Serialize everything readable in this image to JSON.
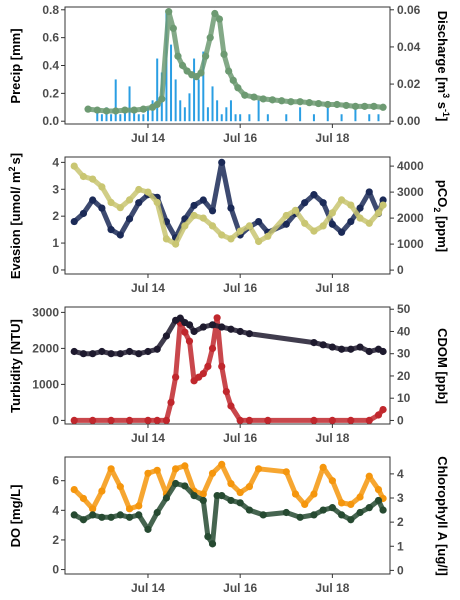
{
  "chart_data": [
    {
      "type": "bar+scatter",
      "left_axis": {
        "label": "Precip [mm]",
        "ylim": [
          -0.02,
          0.82
        ],
        "ticks": [
          "0.0",
          "0.2",
          "0.4",
          "0.6",
          "0.8"
        ]
      },
      "right_axis": {
        "label_main": "Discharge [m",
        "label_sup1": "3",
        "label_mid": " s",
        "label_sup2": "-1",
        "label_end": "]",
        "ylim": [
          -0.0015,
          0.0615
        ],
        "ticks": [
          "0.00",
          "0.02",
          "0.04",
          "0.06"
        ]
      },
      "x_ticks": [
        "Jul 14",
        "Jul 16",
        "Jul 18"
      ],
      "series": [
        {
          "name": "Precip",
          "color": "#2a9ee3",
          "axis": "left",
          "kind": "bars",
          "x": [
            12.9,
            13.0,
            13.1,
            13.2,
            13.3,
            13.4,
            13.5,
            13.6,
            13.7,
            13.8,
            13.9,
            14.0,
            14.1,
            14.2,
            14.3,
            14.4,
            14.5,
            14.6,
            14.7,
            14.8,
            14.9,
            15.0,
            15.1,
            15.2,
            15.3,
            15.4,
            15.5,
            15.6,
            15.7,
            15.8,
            15.9,
            16.0,
            16.2,
            16.4,
            16.6,
            17.0,
            17.3,
            17.6,
            17.9,
            18.2,
            18.5,
            18.8,
            19.0
          ],
          "values": [
            0.1,
            0.05,
            0.1,
            0.05,
            0.3,
            0.05,
            0.1,
            0.25,
            0.1,
            0.05,
            0.05,
            0.1,
            0.15,
            0.45,
            0.35,
            0.8,
            0.55,
            0.3,
            0.15,
            0.1,
            0.2,
            0.45,
            0.3,
            0.5,
            0.1,
            0.25,
            0.15,
            0.05,
            0.1,
            0.15,
            0.05,
            0.05,
            0.05,
            0.15,
            0.05,
            0.05,
            0.1,
            0.05,
            0.1,
            0.05,
            0.1,
            0.05,
            0.05
          ]
        },
        {
          "name": "Discharge",
          "color": "#6d9a72",
          "axis": "right",
          "kind": "points",
          "x": [
            12.7,
            12.9,
            13.1,
            13.3,
            13.5,
            13.7,
            13.9,
            14.1,
            14.2,
            14.3,
            14.45,
            14.55,
            14.65,
            14.75,
            14.85,
            14.95,
            15.05,
            15.15,
            15.25,
            15.35,
            15.45,
            15.55,
            15.65,
            15.75,
            15.85,
            15.95,
            16.1,
            16.3,
            16.5,
            16.7,
            16.9,
            17.1,
            17.3,
            17.5,
            17.7,
            17.9,
            18.1,
            18.3,
            18.5,
            18.7,
            18.9,
            19.1
          ],
          "values": [
            0.0065,
            0.006,
            0.0055,
            0.0055,
            0.006,
            0.006,
            0.0065,
            0.0075,
            0.009,
            0.012,
            0.059,
            0.05,
            0.035,
            0.03,
            0.027,
            0.025,
            0.024,
            0.026,
            0.035,
            0.045,
            0.058,
            0.055,
            0.036,
            0.027,
            0.022,
            0.018,
            0.014,
            0.013,
            0.012,
            0.0115,
            0.011,
            0.0105,
            0.0105,
            0.01,
            0.0095,
            0.009,
            0.009,
            0.0085,
            0.008,
            0.008,
            0.008,
            0.0075
          ]
        }
      ]
    },
    {
      "type": "scatter",
      "left_axis": {
        "label_main": "Evasion [umol/ m",
        "label_sup": "2",
        "label_end": "s]",
        "ylim": [
          -0.15,
          4.2
        ],
        "ticks": [
          "0",
          "1",
          "2",
          "3",
          "4"
        ]
      },
      "right_axis": {
        "label_main": "pCO",
        "label_sub": "2",
        "label_end": " [ppm]",
        "ylim": [
          -150,
          4350
        ],
        "ticks": [
          "0",
          "1000",
          "2000",
          "3000",
          "4000"
        ]
      },
      "x_ticks": [
        "Jul 14",
        "Jul 16",
        "Jul 18"
      ],
      "series": [
        {
          "name": "Evasion",
          "color": "#1b2a57",
          "axis": "left",
          "x": [
            12.4,
            12.6,
            12.8,
            13.0,
            13.2,
            13.4,
            13.6,
            13.8,
            14.0,
            14.2,
            14.4,
            14.6,
            14.8,
            15.0,
            15.2,
            15.4,
            15.6,
            15.8,
            16.0,
            16.2,
            16.4,
            16.6,
            17.0,
            17.2,
            17.4,
            17.6,
            17.8,
            18.0,
            18.2,
            18.4,
            18.6,
            18.8,
            19.0,
            19.1
          ],
          "values": [
            1.8,
            2.1,
            2.6,
            2.3,
            1.5,
            1.3,
            1.9,
            2.5,
            2.8,
            2.7,
            1.8,
            1.2,
            1.9,
            2.4,
            2.6,
            2.2,
            4.0,
            2.3,
            1.3,
            1.6,
            1.8,
            1.4,
            1.7,
            2.1,
            2.5,
            2.8,
            2.5,
            1.7,
            1.4,
            1.8,
            2.3,
            2.9,
            2.1,
            2.6
          ]
        },
        {
          "name": "pCO2",
          "color": "#c9c672",
          "axis": "right",
          "x": [
            12.4,
            12.6,
            12.8,
            13.0,
            13.2,
            13.4,
            13.6,
            13.8,
            14.0,
            14.2,
            14.4,
            14.6,
            14.8,
            15.0,
            15.2,
            15.4,
            15.6,
            15.8,
            16.0,
            16.2,
            16.4,
            16.6,
            17.0,
            17.2,
            17.4,
            17.6,
            17.8,
            18.0,
            18.2,
            18.4,
            18.6,
            18.8,
            19.0,
            19.1
          ],
          "values": [
            4000,
            3600,
            3500,
            3200,
            2600,
            2400,
            2700,
            3100,
            3000,
            2600,
            1200,
            1000,
            1700,
            2100,
            2000,
            1700,
            1350,
            1200,
            1500,
            1700,
            1100,
            1300,
            2100,
            2300,
            1800,
            1500,
            1700,
            2200,
            2700,
            2500,
            2000,
            1800,
            2200,
            2500
          ]
        }
      ]
    },
    {
      "type": "scatter",
      "left_axis": {
        "label": "Turbidity [NTU]",
        "ylim": [
          -100,
          3150
        ],
        "ticks": [
          "0",
          "1000",
          "2000",
          "3000"
        ]
      },
      "right_axis": {
        "label": "CDOM [ppb]",
        "ylim": [
          -1.6,
          51
        ],
        "ticks": [
          "0",
          "10",
          "20",
          "30",
          "40",
          "50"
        ]
      },
      "x_ticks": [
        "Jul 14",
        "Jul 16",
        "Jul 18"
      ],
      "series": [
        {
          "name": "Turbidity",
          "color": "#c0272d",
          "axis": "left",
          "x": [
            12.4,
            12.8,
            13.2,
            13.6,
            14.0,
            14.2,
            14.4,
            14.5,
            14.6,
            14.7,
            14.8,
            14.9,
            15.0,
            15.1,
            15.2,
            15.3,
            15.4,
            15.5,
            15.6,
            15.7,
            15.8,
            16.0,
            16.2,
            16.6,
            17.6,
            18.0,
            18.4,
            18.8,
            19.0,
            19.1
          ],
          "values": [
            0,
            0,
            0,
            0,
            0,
            0,
            0,
            500,
            1200,
            2700,
            2450,
            2200,
            1100,
            1200,
            1300,
            1500,
            2000,
            2850,
            1500,
            800,
            400,
            0,
            0,
            0,
            0,
            0,
            0,
            0,
            150,
            300
          ]
        },
        {
          "name": "CDOM",
          "color": "#1e1a2e",
          "axis": "right",
          "x": [
            12.4,
            12.6,
            12.8,
            13.0,
            13.2,
            13.4,
            13.6,
            13.8,
            14.0,
            14.2,
            14.4,
            14.6,
            14.7,
            14.8,
            14.9,
            15.0,
            15.2,
            15.4,
            15.6,
            15.8,
            16.0,
            16.2,
            17.6,
            17.8,
            18.0,
            18.2,
            18.4,
            18.6,
            18.8,
            19.0,
            19.1
          ],
          "values": [
            31,
            30,
            30,
            31,
            30,
            30,
            31,
            30,
            31,
            32,
            38,
            45,
            46,
            44,
            43,
            40,
            42,
            43,
            42,
            41,
            40,
            39,
            35,
            34,
            33,
            32,
            32,
            33,
            31,
            32,
            31
          ]
        }
      ]
    },
    {
      "type": "scatter",
      "left_axis": {
        "label": "DO [mg/L]",
        "ylim": [
          -0.3,
          7.6
        ],
        "ticks": [
          "0",
          "2",
          "4",
          "6"
        ]
      },
      "right_axis": {
        "label": "Chlorophyll A [ug/l]",
        "ylim": [
          -0.15,
          4.7
        ],
        "ticks": [
          "0",
          "1",
          "2",
          "3",
          "4"
        ]
      },
      "x_ticks": [
        "Jul 14",
        "Jul 16",
        "Jul 18"
      ],
      "series": [
        {
          "name": "DO",
          "color": "#f5960d",
          "axis": "left",
          "x": [
            12.4,
            12.6,
            12.8,
            13.0,
            13.2,
            13.4,
            13.6,
            13.8,
            14.0,
            14.2,
            14.4,
            14.6,
            14.8,
            15.0,
            15.2,
            15.4,
            15.6,
            15.8,
            16.0,
            16.2,
            16.4,
            17.0,
            17.2,
            17.4,
            17.6,
            17.8,
            18.0,
            18.2,
            18.4,
            18.6,
            18.8,
            19.0,
            19.1
          ],
          "values": [
            5.4,
            4.8,
            4.1,
            5.3,
            6.8,
            5.6,
            4.1,
            4.3,
            6.5,
            6.7,
            5.1,
            6.8,
            7.0,
            5.3,
            5.1,
            6.5,
            7.1,
            5.8,
            5.2,
            5.6,
            6.8,
            6.6,
            5.1,
            4.4,
            5.1,
            6.9,
            6.0,
            4.5,
            4.4,
            4.9,
            6.3,
            5.4,
            4.8
          ]
        },
        {
          "name": "Chlorophyll A",
          "color": "#264a31",
          "axis": "right",
          "x": [
            12.4,
            12.6,
            12.8,
            13.0,
            13.2,
            13.4,
            13.6,
            13.8,
            14.0,
            14.2,
            14.4,
            14.6,
            14.8,
            15.0,
            15.2,
            15.3,
            15.4,
            15.5,
            15.6,
            15.8,
            16.0,
            16.2,
            16.5,
            17.0,
            17.3,
            17.6,
            17.8,
            18.0,
            18.2,
            18.4,
            18.6,
            18.8,
            19.0,
            19.1
          ],
          "values": [
            2.3,
            2.1,
            2.3,
            2.2,
            2.2,
            2.3,
            2.2,
            2.3,
            1.7,
            2.4,
            3.0,
            3.6,
            3.5,
            3.1,
            2.9,
            1.4,
            1.1,
            3.1,
            3.1,
            2.9,
            2.8,
            2.5,
            2.3,
            2.4,
            2.2,
            2.3,
            2.5,
            2.6,
            2.3,
            2.1,
            2.4,
            2.6,
            2.9,
            2.5
          ]
        }
      ]
    }
  ]
}
